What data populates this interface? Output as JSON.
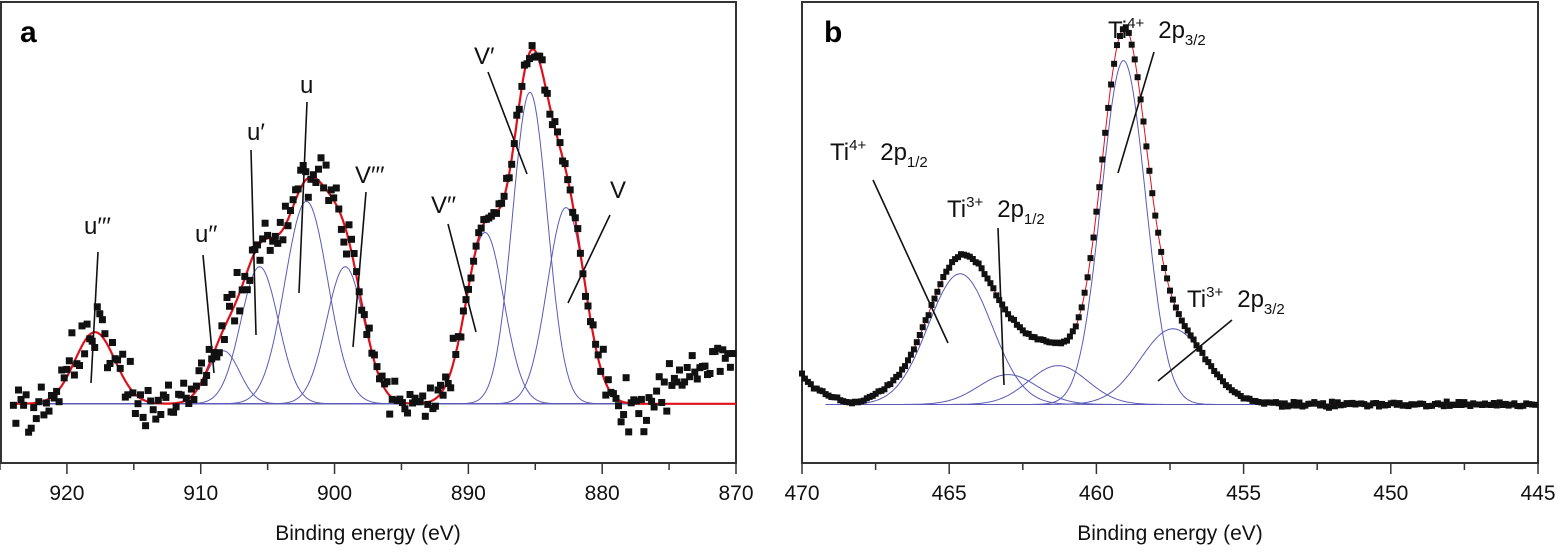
{
  "chart_data": [
    {
      "panel": "a",
      "type": "scatter",
      "xlabel": "Binding energy (eV)",
      "ylabel": "",
      "xlim": [
        925,
        870
      ],
      "x_reversed": true,
      "ylim": [
        -19,
        129
      ],
      "y_units": "relative intensity (no axis ticks printed)",
      "grid": false,
      "xticks": [
        "920",
        "910",
        "900",
        "890",
        "880",
        "870"
      ],
      "xtick_values": [
        920,
        910,
        900,
        890,
        880,
        870
      ],
      "colors": {
        "points": "#111111",
        "fit": "#e0101a",
        "components": "#5a5ab8"
      },
      "components": [
        {
          "label": "u′′′",
          "center": 917.9,
          "height": 23,
          "sigma": 1.5
        },
        {
          "label": "u′′",
          "center": 908.3,
          "height": 17,
          "sigma": 1.2
        },
        {
          "label": "u′",
          "center": 905.6,
          "height": 44,
          "sigma": 1.4
        },
        {
          "label": "u",
          "center": 902.1,
          "height": 65,
          "sigma": 1.6
        },
        {
          "label": "V′′′",
          "center": 899.2,
          "height": 44,
          "sigma": 1.4
        },
        {
          "label": "V′′",
          "center": 888.75,
          "height": 55,
          "sigma": 1.4
        },
        {
          "label": "V′",
          "center": 885.4,
          "height": 100,
          "sigma": 1.3
        },
        {
          "label": "V",
          "center": 882.7,
          "height": 63,
          "sigma": 1.4
        }
      ]
    },
    {
      "panel": "b",
      "type": "scatter",
      "xlabel": "Binding energy (eV)",
      "ylabel": "",
      "xlim": [
        470,
        445
      ],
      "x_reversed": true,
      "ylim": [
        -17,
        117
      ],
      "grid": false,
      "xticks": [
        "470",
        "465",
        "460",
        "455",
        "450",
        "445"
      ],
      "xtick_values": [
        470,
        465,
        460,
        455,
        450,
        445
      ],
      "colors": {
        "points": "#111111",
        "fit": "#e0101a",
        "components": "#5a5ab8"
      },
      "components": [
        {
          "label": {
            "ion": "Ti",
            "charge": "4+",
            "orbital": "2p",
            "j": "1/2"
          },
          "center": 464.63,
          "height": 38,
          "sigma": 1.08
        },
        {
          "label": {
            "ion": "Ti",
            "charge": "3+",
            "orbital": "2p",
            "j": "1/2"
          },
          "center": 463.0,
          "height": 8.7,
          "sigma": 1.0
        },
        {
          "label": null,
          "center": 461.3,
          "height": 11.3,
          "sigma": 1.0
        },
        {
          "label": {
            "ion": "Ti",
            "charge": "4+",
            "orbital": "2p",
            "j": "3/2"
          },
          "center": 459.08,
          "height": 100,
          "sigma": 0.75
        },
        {
          "label": {
            "ion": "Ti",
            "charge": "3+",
            "orbital": "2p",
            "j": "3/2"
          },
          "center": 457.4,
          "height": 22,
          "sigma": 1.1
        }
      ]
    }
  ],
  "panels": {
    "a": "a",
    "b": "b"
  }
}
